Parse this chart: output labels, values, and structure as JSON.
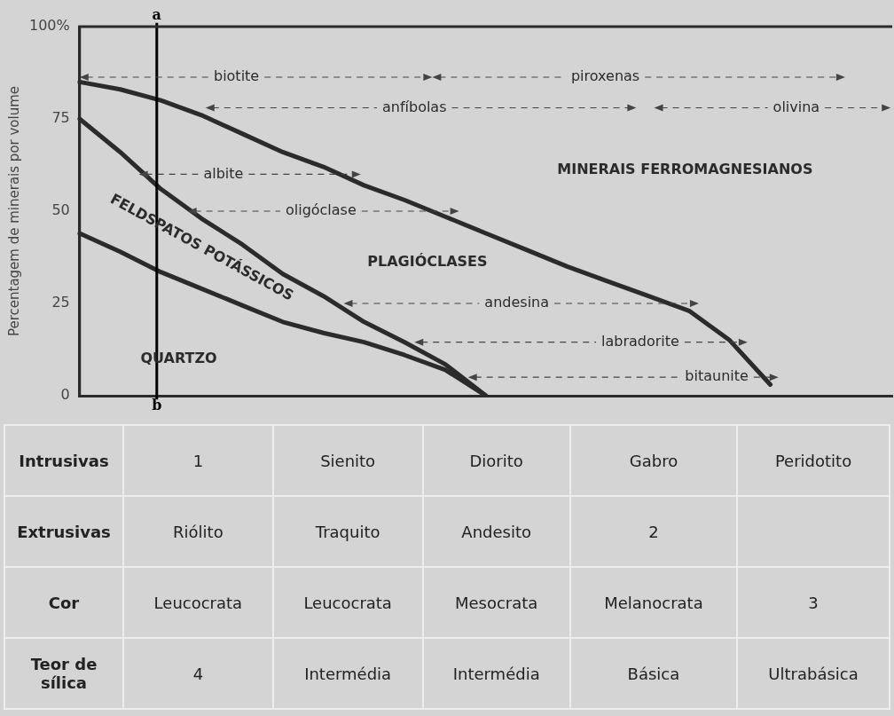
{
  "chart_data": [
    {
      "type": "line",
      "ylabel": "Percentagem de minerais por volume",
      "categories": [
        null,
        null,
        null,
        null,
        null,
        null,
        null,
        null,
        null,
        null,
        null,
        null,
        null,
        null,
        null,
        null,
        null,
        null,
        null,
        null,
        null
      ],
      "ylim": [
        0,
        100
      ],
      "yticks": [
        0,
        25,
        50,
        75,
        {
          "value": 100,
          "label": "100%"
        }
      ],
      "tick_labels": "y",
      "marker": "none",
      "line_style": "solid",
      "series": [
        {
          "color": "#2b2b2b",
          "values": [
            44,
            39,
            33.5,
            29,
            24.5,
            20,
            17,
            14.5,
            11,
            7,
            0,
            null,
            null,
            null,
            null,
            null,
            null,
            null,
            null,
            null,
            null
          ]
        },
        {
          "color": "#2b2b2b",
          "values": [
            75,
            66,
            56,
            48,
            41,
            33,
            27,
            20,
            14.5,
            8.5,
            0,
            null,
            null,
            null,
            null,
            null,
            null,
            null,
            null,
            null,
            null
          ]
        },
        {
          "color": "#2b2b2b",
          "values": [
            85,
            83,
            80,
            76,
            71,
            66,
            62,
            57,
            53,
            48.5,
            44,
            39.5,
            35,
            31,
            27,
            23,
            15,
            3,
            null,
            null,
            null
          ]
        }
      ],
      "annotations": [
        "a",
        "b",
        "biotite",
        "piroxenas",
        "anfíbolas",
        "olivina",
        "albite",
        "oligóclase",
        "andesina",
        "labradorite",
        "bitaunite",
        "MINERAIS FERROMAGNESIANOS",
        "PLAGIÓCLASES",
        "FELDSPATOS POTÁSSICOS",
        "QUARTZO"
      ]
    },
    {
      "type": "other",
      "y_categories": [
        "Intrusivas",
        "Extrusivas",
        "Cor",
        "Teor de sílica"
      ],
      "cell_labels": [
        [
          "1",
          "Sienito",
          "Diorito",
          "Gabro",
          "Peridotito"
        ],
        [
          "Riólito",
          "Traquito",
          "Andesito",
          "2",
          null
        ],
        [
          "Leucocrata",
          "Leucocrata",
          "Mesocrata",
          "Melanocrata",
          "3"
        ],
        [
          "4",
          "Intermédia",
          "Intermédia",
          "Básica",
          "Ultrabásica"
        ]
      ]
    }
  ]
}
